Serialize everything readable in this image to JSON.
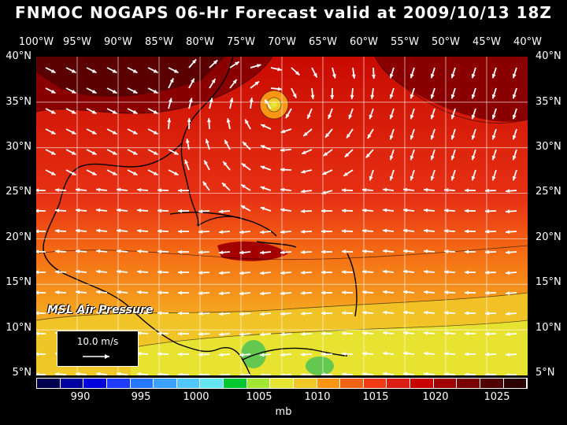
{
  "title": "FNMOC NOGAPS 06-Hr Forecast valid at 2009/10/13 18Z",
  "lon_labels": [
    "100°W",
    "95°W",
    "90°W",
    "85°W",
    "80°W",
    "75°W",
    "70°W",
    "65°W",
    "60°W",
    "55°W",
    "50°W",
    "45°W",
    "40°W"
  ],
  "lat_labels": [
    "40°N",
    "35°N",
    "30°N",
    "25°N",
    "20°N",
    "15°N",
    "10°N",
    "5°N"
  ],
  "map_label": "MSL Air Pressure",
  "scale_label": "10.0 m/s",
  "legend": {
    "ticks": [
      "990",
      "995",
      "1000",
      "1005",
      "1010",
      "1015",
      "1020",
      "1025"
    ],
    "unit": "mb",
    "colors": [
      "#000050",
      "#0000a0",
      "#0000dc",
      "#1e3cff",
      "#2878ff",
      "#3ca0ff",
      "#50c8ff",
      "#64e6f0",
      "#00c832",
      "#a0e632",
      "#e6e632",
      "#f0c828",
      "#fa9614",
      "#f06414",
      "#f03c14",
      "#dc1e14",
      "#c80000",
      "#a00000",
      "#780000",
      "#500000",
      "#2a0000"
    ]
  },
  "colors": {
    "high": "#7a0000",
    "mid_high": "#c80000",
    "mid": "#f03c14",
    "low_mid": "#fa9614",
    "low": "#f0c828",
    "yellow": "#e6e632",
    "green": "#64c850"
  }
}
